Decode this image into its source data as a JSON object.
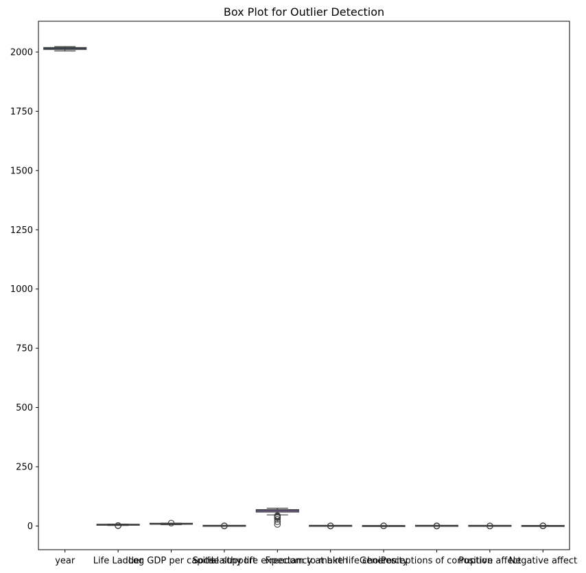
{
  "chart_data": {
    "type": "box",
    "title": "Box Plot for Outlier Detection",
    "xlabel": "",
    "ylabel": "",
    "ylim": [
      -100,
      2130
    ],
    "yticks": [
      0,
      250,
      500,
      750,
      1000,
      1250,
      1500,
      1750,
      2000
    ],
    "grid": false,
    "categories": [
      "year",
      "Life Ladder",
      "Log GDP per capita",
      "Social support",
      "Healthy life expectancy at birth",
      "Freedom to make life choices",
      "Generosity",
      "Perceptions of corruption",
      "Positive affect",
      "Negative affect"
    ],
    "boxes": [
      {
        "name": "year",
        "color": "#3a5fa8",
        "whislo": 2005,
        "q1": 2011,
        "med": 2015,
        "q3": 2019,
        "whishi": 2023,
        "fliers": []
      },
      {
        "name": "Life Ladder",
        "color": "#e0782f",
        "whislo": 2.3,
        "q1": 4.6,
        "med": 5.4,
        "q3": 6.2,
        "whishi": 8.0,
        "fliers": [
          1.3,
          1.7,
          2.0
        ]
      },
      {
        "name": "Log GDP per capita",
        "color": "#4a9a4a",
        "whislo": 5.5,
        "q1": 8.4,
        "med": 9.5,
        "q3": 10.4,
        "whishi": 11.7,
        "fliers": [
          12.0
        ]
      },
      {
        "name": "Social support",
        "color": "#c4403f",
        "whislo": 0.45,
        "q1": 0.74,
        "med": 0.83,
        "q3": 0.9,
        "whishi": 0.99,
        "fliers": [
          0.23,
          0.29,
          0.35,
          0.4
        ]
      },
      {
        "name": "Healthy life expectancy at birth",
        "color": "#8a6bb8",
        "whislo": 47,
        "q1": 59,
        "med": 65,
        "q3": 69,
        "whishi": 75,
        "fliers": [
          6.7,
          18,
          28,
          35,
          38,
          40,
          42,
          44
        ]
      },
      {
        "name": "Freedom to make life choices",
        "color": "#8d6458",
        "whislo": 0.38,
        "q1": 0.66,
        "med": 0.77,
        "q3": 0.86,
        "whishi": 0.99,
        "fliers": [
          0.23,
          0.28,
          0.31,
          0.35
        ]
      },
      {
        "name": "Generosity",
        "color": "#d67fc0",
        "whislo": -0.34,
        "q1": -0.11,
        "med": -0.02,
        "q3": 0.09,
        "whishi": 0.4,
        "fliers": [
          0.45,
          0.55,
          0.7
        ]
      },
      {
        "name": "Perceptions of corruption",
        "color": "#8c8c8c",
        "whislo": 0.45,
        "q1": 0.69,
        "med": 0.8,
        "q3": 0.87,
        "whishi": 0.98,
        "fliers": [
          0.03,
          0.1,
          0.18,
          0.25,
          0.32,
          0.4
        ]
      },
      {
        "name": "Positive affect",
        "color": "#b8b83a",
        "whislo": 0.33,
        "q1": 0.57,
        "med": 0.66,
        "q3": 0.74,
        "whishi": 0.88,
        "fliers": [
          0.18,
          0.24,
          0.29
        ]
      },
      {
        "name": "Negative affect",
        "color": "#3fb5c4",
        "whislo": 0.08,
        "q1": 0.21,
        "med": 0.26,
        "q3": 0.32,
        "whishi": 0.48,
        "fliers": [
          0.52,
          0.58,
          0.64,
          0.7
        ]
      }
    ]
  }
}
